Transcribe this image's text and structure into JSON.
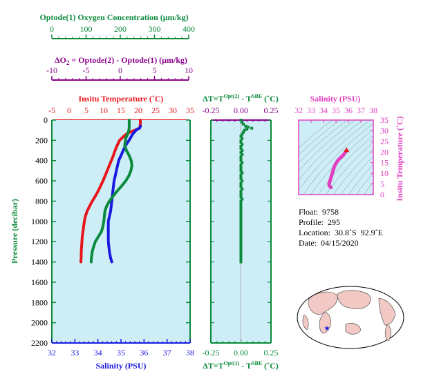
{
  "colors": {
    "green": "#0a8a3a",
    "purple": "#8b008b",
    "red": "#e8161b",
    "blue": "#1a1adf",
    "magenta": "#e040c0",
    "panel_bg": "#cdeef7",
    "land": "#f2c9c4",
    "ocean": "#ffffff"
  },
  "axes": {
    "oxygen": {
      "title": "Optode(1) Oxygen Concentration (μm/kg)",
      "range": [
        0,
        400
      ],
      "ticks": [
        "0",
        "100",
        "200",
        "300",
        "400"
      ]
    },
    "delta_o2": {
      "title_prefix": "ΔO",
      "title_sub": "2",
      "title_rest": " = Optode(2) - Optode(1)    (μm/kg)",
      "range": [
        -10,
        10
      ],
      "ticks": [
        "-10",
        "-5",
        "0",
        "5",
        "10"
      ]
    },
    "temperature": {
      "title": "Insitu Temperature (˚C)",
      "range": [
        -5,
        35
      ],
      "ticks": [
        "-5",
        "0",
        "5",
        "10",
        "15",
        "20",
        "25",
        "30",
        "35"
      ]
    },
    "salinity": {
      "title": "Salinity (PSU)",
      "range": [
        32,
        38
      ],
      "ticks": [
        "32",
        "33",
        "34",
        "35",
        "36",
        "37",
        "38"
      ]
    },
    "pressure": {
      "title": "Pressure (decibar)",
      "range": [
        0,
        2200
      ],
      "ticks": [
        "0",
        "200",
        "400",
        "600",
        "800",
        "1000",
        "1200",
        "1400",
        "1600",
        "1800",
        "2000",
        "2200"
      ]
    },
    "dt_top": {
      "title_main": "ΔT=T",
      "sup1": "Opt(2)",
      "mid": " - T",
      "sup2": "SBE",
      "title_end": " (˚C)",
      "range": [
        -0.25,
        0.25
      ],
      "ticks": [
        "-0.25",
        "0.00",
        "0.25"
      ]
    },
    "dt_bottom": {
      "title_main": "ΔT=T",
      "sup1": "Opt(1)",
      "mid": " - T",
      "sup2": "SBE",
      "title_end": " (˚C)",
      "range": [
        -0.25,
        0.25
      ],
      "ticks": [
        "-0.25",
        "0.00",
        "0.25"
      ]
    },
    "ts_salinity": {
      "title": "Salinity (PSU)",
      "range": [
        32,
        38
      ],
      "ticks": [
        "32",
        "33",
        "34",
        "35",
        "36",
        "37",
        "38"
      ]
    },
    "ts_temperature": {
      "title": "Insitu Temperature (˚C)",
      "range": [
        0,
        35
      ],
      "ticks": [
        "0",
        "5",
        "10",
        "15",
        "20",
        "25",
        "30",
        "35"
      ]
    }
  },
  "info": {
    "float": "Float:  9758",
    "profile": "Profile:  295",
    "location": "Location:  30.8˚S  92.9˚E",
    "date": "Date:  04/15/2020"
  },
  "chart_data": [
    {
      "type": "line",
      "title": "",
      "xlabel": "Insitu Temperature (˚C) / Salinity (PSU) / Optode(1) Oxygen Concentration (μm/kg)",
      "ylabel": "Pressure (decibar)",
      "ylim": [
        0,
        2200
      ],
      "series": [
        {
          "name": "Insitu Temperature (˚C)",
          "axis": "temperature",
          "points": [
            [
              20.6,
              0
            ],
            [
              20.6,
              20
            ],
            [
              20.6,
              40
            ],
            [
              20.5,
              60
            ],
            [
              20.4,
              80
            ],
            [
              19.0,
              100
            ],
            [
              17.5,
              120
            ],
            [
              16.5,
              140
            ],
            [
              15.8,
              160
            ],
            [
              15.2,
              180
            ],
            [
              14.6,
              200
            ],
            [
              13.9,
              250
            ],
            [
              13.3,
              300
            ],
            [
              12.8,
              350
            ],
            [
              12.2,
              400
            ],
            [
              11.6,
              450
            ],
            [
              11.0,
              500
            ],
            [
              10.4,
              550
            ],
            [
              9.8,
              600
            ],
            [
              9.1,
              650
            ],
            [
              8.4,
              700
            ],
            [
              7.6,
              750
            ],
            [
              6.7,
              800
            ],
            [
              5.9,
              850
            ],
            [
              5.2,
              900
            ],
            [
              4.7,
              950
            ],
            [
              4.4,
              1000
            ],
            [
              4.2,
              1050
            ],
            [
              4.0,
              1100
            ],
            [
              3.8,
              1150
            ],
            [
              3.7,
              1200
            ],
            [
              3.6,
              1250
            ],
            [
              3.5,
              1300
            ],
            [
              3.5,
              1350
            ],
            [
              3.4,
              1400
            ]
          ]
        },
        {
          "name": "Salinity (PSU)",
          "axis": "salinity",
          "points": [
            [
              35.85,
              60
            ],
            [
              35.8,
              80
            ],
            [
              35.65,
              100
            ],
            [
              35.5,
              140
            ],
            [
              35.35,
              200
            ],
            [
              35.2,
              250
            ],
            [
              35.1,
              300
            ],
            [
              35.0,
              350
            ],
            [
              34.9,
              400
            ],
            [
              34.85,
              450
            ],
            [
              34.8,
              500
            ],
            [
              34.75,
              550
            ],
            [
              34.7,
              600
            ],
            [
              34.65,
              700
            ],
            [
              34.6,
              800
            ],
            [
              34.55,
              900
            ],
            [
              34.5,
              950
            ],
            [
              34.45,
              1000
            ],
            [
              34.45,
              1100
            ],
            [
              34.45,
              1200
            ],
            [
              34.5,
              1300
            ],
            [
              34.55,
              1360
            ],
            [
              34.6,
              1400
            ]
          ]
        },
        {
          "name": "Optode(1) Oxygen Concentration (μm/kg)",
          "axis": "oxygen",
          "points": [
            [
              226,
              0
            ],
            [
              226,
              40
            ],
            [
              226,
              70
            ],
            [
              225,
              100
            ],
            [
              221,
              140
            ],
            [
              216,
              180
            ],
            [
              213,
              250
            ],
            [
              218,
              300
            ],
            [
              226,
              350
            ],
            [
              232,
              400
            ],
            [
              234,
              450
            ],
            [
              231,
              500
            ],
            [
              225,
              550
            ],
            [
              216,
              600
            ],
            [
              204,
              650
            ],
            [
              191,
              700
            ],
            [
              179,
              750
            ],
            [
              168,
              800
            ],
            [
              160,
              850
            ],
            [
              155,
              900
            ],
            [
              152,
              1000
            ],
            [
              149,
              1050
            ],
            [
              145,
              1100
            ],
            [
              136,
              1150
            ],
            [
              127,
              1200
            ],
            [
              122,
              1250
            ],
            [
              118,
              1300
            ],
            [
              116,
              1350
            ],
            [
              115,
              1400
            ]
          ]
        }
      ]
    },
    {
      "type": "scatter",
      "title": "",
      "xlabel": "ΔT (˚C)",
      "ylabel": "Pressure (decibar)",
      "xlim": [
        -0.25,
        0.25
      ],
      "ylim": [
        0,
        2200
      ],
      "series": [
        {
          "name": "ΔT",
          "points": [
            [
              0.0,
              0
            ],
            [
              0.01,
              20
            ],
            [
              0.02,
              40
            ],
            [
              0.04,
              60
            ],
            [
              0.06,
              70
            ],
            [
              0.09,
              80
            ],
            [
              0.05,
              90
            ],
            [
              0.03,
              100
            ],
            [
              0.02,
              120
            ],
            [
              0.01,
              140
            ],
            [
              0.0,
              160
            ],
            [
              0.01,
              180
            ],
            [
              0.0,
              200
            ],
            [
              0.0,
              220
            ],
            [
              0.01,
              240
            ],
            [
              0.0,
              260
            ],
            [
              0.0,
              280
            ],
            [
              0.01,
              300
            ],
            [
              0.0,
              320
            ],
            [
              0.01,
              340
            ],
            [
              0.0,
              360
            ],
            [
              0.0,
              380
            ],
            [
              0.0,
              400
            ],
            [
              0.01,
              420
            ],
            [
              0.0,
              440
            ],
            [
              0.0,
              460
            ],
            [
              0.0,
              480
            ],
            [
              0.0,
              500
            ],
            [
              0.01,
              520
            ],
            [
              0.0,
              540
            ],
            [
              0.0,
              560
            ],
            [
              0.0,
              580
            ],
            [
              0.01,
              600
            ],
            [
              0.0,
              620
            ],
            [
              0.0,
              640
            ],
            [
              0.0,
              660
            ],
            [
              0.01,
              680
            ],
            [
              0.0,
              700
            ],
            [
              0.0,
              720
            ],
            [
              0.0,
              740
            ],
            [
              0.0,
              760
            ],
            [
              0.01,
              780
            ],
            [
              0.0,
              800
            ],
            [
              0.0,
              820
            ],
            [
              0.0,
              840
            ],
            [
              0.0,
              860
            ],
            [
              0.0,
              880
            ],
            [
              0.0,
              900
            ],
            [
              0.0,
              920
            ],
            [
              0.0,
              940
            ],
            [
              0.0,
              960
            ],
            [
              0.0,
              980
            ],
            [
              0.0,
              1000
            ],
            [
              0.0,
              1020
            ],
            [
              0.0,
              1040
            ],
            [
              0.0,
              1060
            ],
            [
              0.0,
              1080
            ],
            [
              0.0,
              1100
            ],
            [
              0.0,
              1120
            ],
            [
              0.0,
              1140
            ],
            [
              0.0,
              1160
            ],
            [
              0.0,
              1180
            ],
            [
              0.0,
              1200
            ],
            [
              0.0,
              1220
            ],
            [
              0.0,
              1240
            ],
            [
              0.0,
              1260
            ],
            [
              0.0,
              1280
            ],
            [
              0.0,
              1300
            ],
            [
              0.0,
              1320
            ],
            [
              0.0,
              1340
            ],
            [
              0.0,
              1360
            ],
            [
              0.0,
              1380
            ],
            [
              0.0,
              1400
            ]
          ]
        }
      ]
    },
    {
      "type": "scatter",
      "title": "",
      "xlabel": "Salinity (PSU)",
      "ylabel": "Insitu Temperature (˚C)",
      "xlim": [
        32,
        38
      ],
      "ylim": [
        0,
        35
      ],
      "series": [
        {
          "name": "T-S",
          "points": [
            [
              34.6,
              3.4
            ],
            [
              34.55,
              3.6
            ],
            [
              34.5,
              4.0
            ],
            [
              34.45,
              4.4
            ],
            [
              34.45,
              5.0
            ],
            [
              34.5,
              6.0
            ],
            [
              34.55,
              7.0
            ],
            [
              34.6,
              8.0
            ],
            [
              34.65,
              9.0
            ],
            [
              34.7,
              10.0
            ],
            [
              34.75,
              11.0
            ],
            [
              34.8,
              12.0
            ],
            [
              34.85,
              12.8
            ],
            [
              34.9,
              13.6
            ],
            [
              35.0,
              14.6
            ],
            [
              35.1,
              15.6
            ],
            [
              35.2,
              16.4
            ],
            [
              35.35,
              17.2
            ],
            [
              35.5,
              18.0
            ],
            [
              35.65,
              19.0
            ],
            [
              35.8,
              20.4
            ],
            [
              35.85,
              20.6
            ]
          ]
        }
      ]
    }
  ]
}
